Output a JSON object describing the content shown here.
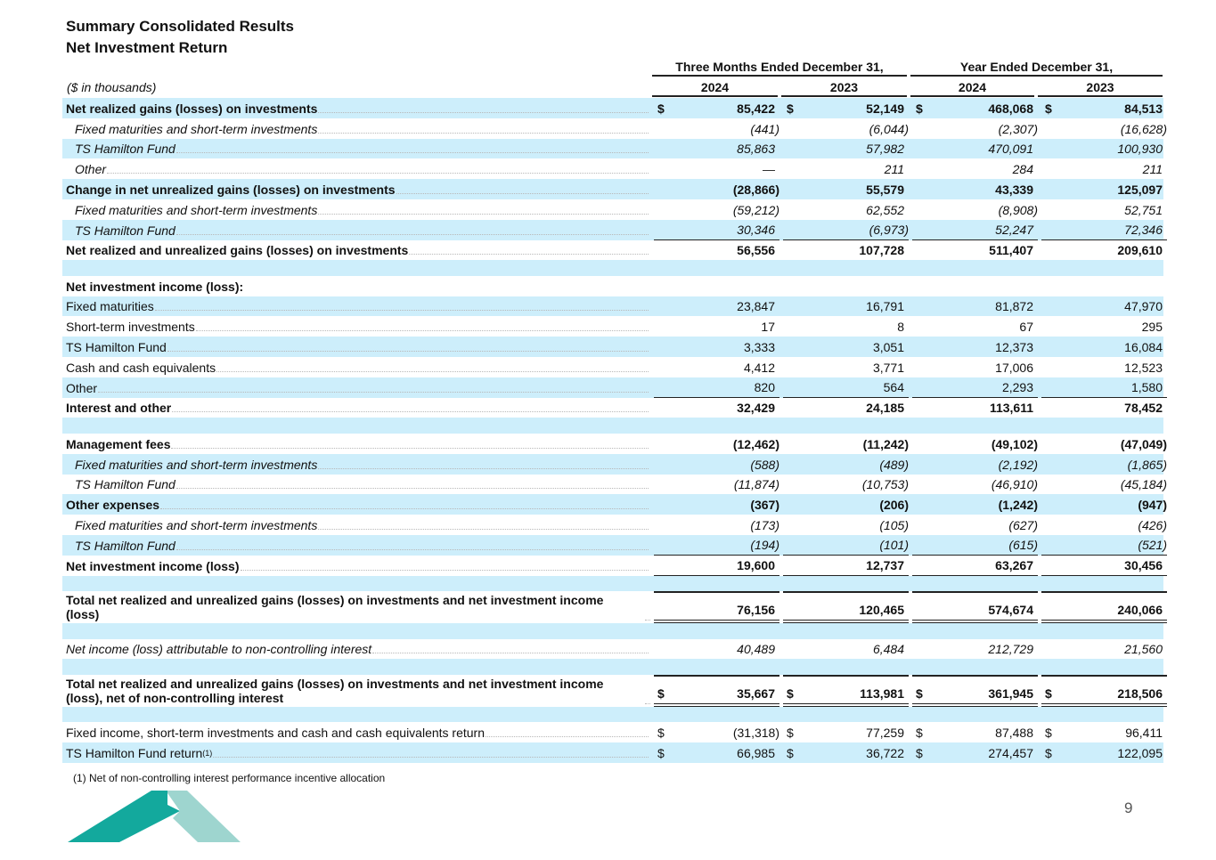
{
  "title": "Summary Consolidated Results",
  "subtitle": "Net Investment Return",
  "units": "($ in thousands)",
  "period_headers": [
    "Three Months Ended December 31,",
    "Year Ended December 31,"
  ],
  "year_headers": [
    "2024",
    "2023",
    "2024",
    "2023"
  ],
  "rows": [
    {
      "label": "Net realized gains (losses) on investments",
      "style": "bold shade",
      "dollar": true,
      "values": [
        "85,422",
        "52,149",
        "468,068",
        "84,513"
      ]
    },
    {
      "label": "Fixed maturities and short-term investments",
      "style": "ital indent",
      "values": [
        "(441)",
        "(6,044)",
        "(2,307)",
        "(16,628)"
      ]
    },
    {
      "label": "TS Hamilton Fund",
      "style": "ital indent shade",
      "values": [
        "85,863",
        "57,982",
        "470,091",
        "100,930"
      ]
    },
    {
      "label": "Other",
      "style": "ital indent",
      "values": [
        "—",
        "211",
        "284",
        "211"
      ]
    },
    {
      "label": "Change in net unrealized gains (losses) on investments",
      "style": "bold shade",
      "values": [
        "(28,866)",
        "55,579",
        "43,339",
        "125,097"
      ]
    },
    {
      "label": "Fixed maturities and short-term investments",
      "style": "ital indent",
      "values": [
        "(59,212)",
        "62,552",
        "(8,908)",
        "52,751"
      ]
    },
    {
      "label": "TS Hamilton Fund",
      "style": "ital indent shade ul",
      "values": [
        "30,346",
        "(6,973)",
        "52,247",
        "72,346"
      ]
    },
    {
      "label": "Net realized and unrealized gains (losses) on investments",
      "style": "bold",
      "values": [
        "56,556",
        "107,728",
        "511,407",
        "209,610"
      ]
    },
    {
      "style": "blank shade"
    },
    {
      "label": "Net investment income (loss):",
      "style": "bold noleader"
    },
    {
      "label": "Fixed maturities",
      "style": "shade",
      "values": [
        "23,847",
        "16,791",
        "81,872",
        "47,970"
      ]
    },
    {
      "label": "Short-term investments",
      "style": "",
      "values": [
        "17",
        "8",
        "67",
        "295"
      ]
    },
    {
      "label": "TS Hamilton Fund",
      "style": "shade",
      "values": [
        "3,333",
        "3,051",
        "12,373",
        "16,084"
      ]
    },
    {
      "label": "Cash and cash equivalents",
      "style": "",
      "values": [
        "4,412",
        "3,771",
        "17,006",
        "12,523"
      ]
    },
    {
      "label": "Other",
      "style": "shade ul",
      "values": [
        "820",
        "564",
        "2,293",
        "1,580"
      ]
    },
    {
      "label": "Interest and other",
      "style": "bold",
      "values": [
        "32,429",
        "24,185",
        "113,611",
        "78,452"
      ]
    },
    {
      "style": "blank shade"
    },
    {
      "label": "Management fees",
      "style": "bold",
      "values": [
        "(12,462)",
        "(11,242)",
        "(49,102)",
        "(47,049)"
      ]
    },
    {
      "label": "Fixed maturities and short-term investments",
      "style": "ital indent shade",
      "values": [
        "(588)",
        "(489)",
        "(2,192)",
        "(1,865)"
      ]
    },
    {
      "label": "TS Hamilton Fund",
      "style": "ital indent",
      "values": [
        "(11,874)",
        "(10,753)",
        "(46,910)",
        "(45,184)"
      ]
    },
    {
      "label": "Other expenses",
      "style": "bold shade",
      "values": [
        "(367)",
        "(206)",
        "(1,242)",
        "(947)"
      ]
    },
    {
      "label": "Fixed maturities and short-term investments",
      "style": "ital indent",
      "values": [
        "(173)",
        "(105)",
        "(627)",
        "(426)"
      ]
    },
    {
      "label": "TS Hamilton Fund",
      "style": "ital indent shade ul",
      "values": [
        "(194)",
        "(101)",
        "(615)",
        "(521)"
      ]
    },
    {
      "label": "Net investment income (loss)",
      "style": "bold ul",
      "values": [
        "19,600",
        "12,737",
        "63,267",
        "30,456"
      ]
    },
    {
      "style": "blank shade"
    },
    {
      "label": "Total net realized and unrealized gains (losses) on investments and net investment income (loss)",
      "style": "bold two ol dbl",
      "values": [
        "76,156",
        "120,465",
        "574,674",
        "240,066"
      ]
    },
    {
      "style": "blank shade"
    },
    {
      "label": "Net income (loss) attributable to non-controlling interest",
      "style": "ital",
      "values": [
        "40,489",
        "6,484",
        "212,729",
        "21,560"
      ]
    },
    {
      "style": "blank shade"
    },
    {
      "label": "Total net realized and unrealized gains (losses) on investments and net investment income (loss), net of non-controlling interest",
      "style": "bold two ol dbl",
      "dollar": true,
      "values": [
        "35,667",
        "113,981",
        "361,945",
        "218,506"
      ]
    },
    {
      "style": "blank shade"
    },
    {
      "label": "Fixed income, short-term investments and cash and cash equivalents return",
      "style": "",
      "dollar": true,
      "values": [
        "(31,318)",
        "77,259",
        "87,488",
        "96,411"
      ]
    },
    {
      "label": "TS Hamilton Fund return",
      "sup": "(1)",
      "style": "shade",
      "dollar": true,
      "values": [
        "66,985",
        "36,722",
        "274,457",
        "122,095"
      ]
    }
  ],
  "dollar_sign": "$",
  "footnote": "(1)  Net of non-controlling interest performance incentive allocation",
  "page_number": "9",
  "colors": {
    "shade": "#cdeefb",
    "logo_dark": "#13a99d",
    "logo_light": "#9ed5cf"
  }
}
